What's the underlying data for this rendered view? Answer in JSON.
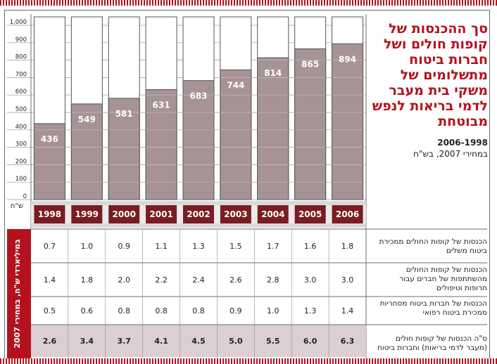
{
  "title": "סך ההכנסות של קופות חולים ושל חברות ביטוח מתשלומים של משקי בית מעבר לדמי בריאות לנפש מבוטחת",
  "years_range": "2006-1998",
  "prices_note": "במחירי 2007, בש\"ח",
  "unit_label": "ש\"ח",
  "table_side_label": "במיליארדי ש\"ח, במחירי 2007",
  "colors": {
    "accent": "#b3121d",
    "bar": "#a69396",
    "year_band": "#7a1c22",
    "sum_row": "#dccfd1"
  },
  "chart_data": {
    "type": "bar",
    "categories": [
      "1998",
      "1999",
      "2000",
      "2001",
      "2002",
      "2003",
      "2004",
      "2005",
      "2006"
    ],
    "values": [
      436,
      549,
      581,
      631,
      683,
      744,
      814,
      865,
      894
    ],
    "value_labels": [
      "436",
      "549",
      "581",
      "631",
      "683",
      "744",
      "814",
      "865",
      "894"
    ],
    "ylim": [
      0,
      1000
    ],
    "yticks": [
      0,
      100,
      200,
      300,
      400,
      500,
      600,
      700,
      800,
      900,
      1000
    ],
    "ytick_labels": [
      "0",
      "100",
      "200",
      "300",
      "400",
      "500",
      "600",
      "700",
      "800",
      "900",
      "1,000"
    ],
    "grid": true
  },
  "table": {
    "rows": [
      {
        "label": "הכנסות של קופות החולים ממכירת ביטוח משלים",
        "values": [
          "0.7",
          "1.0",
          "0.9",
          "1.1",
          "1.3",
          "1.5",
          "1.7",
          "1.6",
          "1.8"
        ]
      },
      {
        "label": "הכנסות של קופות החולים מהשתתפות של חברים עבור תרופות וטיפולים",
        "values": [
          "1.4",
          "1.8",
          "2.0",
          "2.2",
          "2.4",
          "2.6",
          "2.8",
          "3.0",
          "3.0"
        ]
      },
      {
        "label": "הכנסות של חברות ביטוח מסחריות ממכירת ביטוח רפואי",
        "values": [
          "0.5",
          "0.6",
          "0.8",
          "0.8",
          "0.8",
          "0.9",
          "1.0",
          "1.3",
          "1.4"
        ]
      },
      {
        "label": "ס\"ה הכנסות של קופות חולים (מעבר לדמי בריאות) וחברות ביטוח",
        "values": [
          "2.6",
          "3.4",
          "3.7",
          "4.1",
          "4.5",
          "5.0",
          "5.5",
          "6.0",
          "6.3"
        ]
      }
    ]
  }
}
